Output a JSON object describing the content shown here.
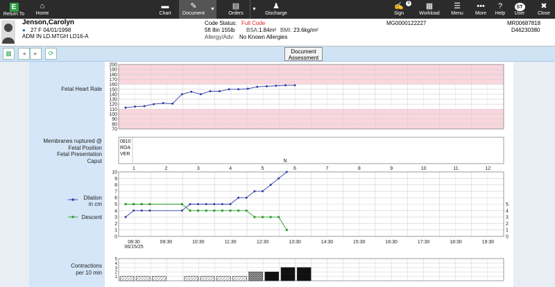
{
  "topbar": {
    "return": {
      "label": "Return To",
      "logo": "E"
    },
    "home": {
      "label": "Home"
    },
    "chart": {
      "label": "Chart"
    },
    "document": {
      "label": "Document"
    },
    "orders": {
      "label": "Orders"
    },
    "discharge": {
      "label": "Discharge"
    },
    "sign": {
      "label": "Sign",
      "count": "9"
    },
    "workload": {
      "label": "Workload"
    },
    "menu": {
      "label": "Menu"
    },
    "more": {
      "label": "More"
    },
    "help": {
      "label": "Help"
    },
    "user": {
      "label": "User",
      "initials": "ST"
    },
    "close": {
      "label": "Close"
    }
  },
  "patient": {
    "name": "Jenson,Carolyn",
    "age_sex_dob": "27  F  04/01/1998",
    "location": "ADM IN  LD.MTGH  LD16-A",
    "code_status_label": "Code Status:",
    "code_status": "Full Code",
    "height_weight": "5ft 8in  155lb",
    "bsa_label": "BSA:",
    "bsa": "1.84m²",
    "bmi_label": "BMI:",
    "bmi": "23.6kg/m²",
    "allergy_label": "Allergy/Adv:",
    "allergy": "No Known Allergies",
    "mg": "MG0000122227",
    "mr": "MR00687818",
    "d": "D46230380"
  },
  "toolbar": {
    "document_btn_line1": "Document",
    "document_btn_line2": "Assessment"
  },
  "labels": {
    "fhr": "Fetal Heart Rate",
    "membranes": "Membranes ruptured @",
    "position": "Fetal Position",
    "presentation": "Fetal Presentation",
    "caput": "Caput",
    "dilation": "Dilation",
    "dilation_unit": "in cm",
    "descent": "Descent",
    "contractions": "Contractions",
    "contractions_unit": "per 10 min"
  },
  "chart_data": [
    {
      "type": "line",
      "title": "Fetal Heart Rate",
      "ylim": [
        70,
        200
      ],
      "yticks": [
        70,
        80,
        90,
        100,
        110,
        120,
        130,
        140,
        150,
        160,
        170,
        180,
        190,
        200
      ],
      "bands": [
        [
          160,
          200
        ],
        [
          70,
          110
        ]
      ],
      "series": [
        {
          "values": [
            113,
            115,
            116,
            120,
            122,
            121,
            140,
            145,
            140,
            146,
            146,
            150,
            150,
            151,
            155,
            156,
            157,
            158,
            158
          ]
        }
      ]
    },
    {
      "type": "table",
      "rows": {
        "membranes": "0810",
        "position": "ROA",
        "presentation": "VER",
        "caput": "N"
      }
    },
    {
      "type": "line",
      "ylim": [
        0,
        10
      ],
      "yticks_left": [
        0,
        1,
        2,
        3,
        4,
        5,
        6,
        7,
        8,
        9,
        10
      ],
      "yticks_right": [
        0,
        1,
        2,
        3,
        4,
        5
      ],
      "hour_ticks": [
        "1",
        "2",
        "3",
        "4",
        "5",
        "6",
        "7",
        "8",
        "9",
        "10",
        "11",
        "12"
      ],
      "time_ticks": [
        "08:30",
        "09:30",
        "10:30",
        "11:30",
        "12:30",
        "13:30",
        "14:30",
        "15:30",
        "16:30",
        "17:30",
        "18:30",
        "19:30"
      ],
      "date": "06/15/25",
      "dilation_color": "#2d3aa8",
      "descent_color": "#2c9b2c",
      "dilation": [
        [
          0,
          3
        ],
        [
          0.25,
          4
        ],
        [
          0.5,
          4
        ],
        [
          0.75,
          4
        ],
        [
          1.75,
          4
        ],
        [
          2.0,
          5
        ],
        [
          2.25,
          5
        ],
        [
          2.5,
          5
        ],
        [
          2.75,
          5
        ],
        [
          3.0,
          5
        ],
        [
          3.25,
          5
        ],
        [
          3.5,
          6
        ],
        [
          3.75,
          6
        ],
        [
          4.0,
          7
        ],
        [
          4.25,
          7
        ],
        [
          4.5,
          8
        ],
        [
          4.75,
          9
        ],
        [
          5.0,
          10
        ]
      ],
      "descent": [
        [
          0,
          5
        ],
        [
          0.25,
          5
        ],
        [
          0.5,
          5
        ],
        [
          0.75,
          5
        ],
        [
          1.75,
          5
        ],
        [
          2.0,
          4
        ],
        [
          2.25,
          4
        ],
        [
          2.5,
          4
        ],
        [
          2.75,
          4
        ],
        [
          3.0,
          4
        ],
        [
          3.25,
          4
        ],
        [
          3.5,
          4
        ],
        [
          3.75,
          4
        ],
        [
          4.0,
          3
        ],
        [
          4.25,
          3
        ],
        [
          4.5,
          3
        ],
        [
          4.75,
          3
        ],
        [
          5.0,
          1
        ]
      ]
    },
    {
      "type": "bar",
      "yticks": [
        1,
        2,
        3,
        4,
        5
      ],
      "ylim": [
        0,
        5
      ],
      "bars": [
        {
          "x": 0.0,
          "v": 1,
          "style": "light"
        },
        {
          "x": 0.5,
          "v": 1,
          "style": "light"
        },
        {
          "x": 1.0,
          "v": 1,
          "style": "light"
        },
        {
          "x": 2.0,
          "v": 1,
          "style": "light"
        },
        {
          "x": 2.5,
          "v": 1,
          "style": "light"
        },
        {
          "x": 3.0,
          "v": 1,
          "style": "light"
        },
        {
          "x": 3.5,
          "v": 1,
          "style": "light"
        },
        {
          "x": 4.0,
          "v": 2,
          "style": "medium"
        },
        {
          "x": 4.5,
          "v": 2,
          "style": "dark"
        },
        {
          "x": 5.0,
          "v": 3,
          "style": "dark"
        },
        {
          "x": 5.5,
          "v": 3,
          "style": "dark"
        }
      ]
    }
  ]
}
